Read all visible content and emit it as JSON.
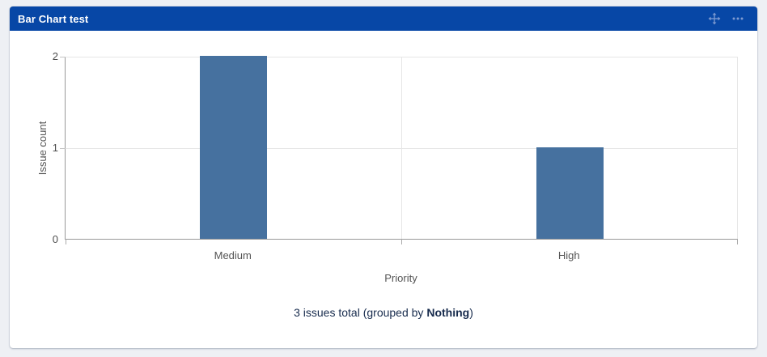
{
  "widget": {
    "title": "Bar Chart test",
    "icons": {
      "move": "four-way-arrow",
      "more": "ellipsis"
    }
  },
  "colors": {
    "page_bg": "#EEF0F4",
    "card_bg": "#FFFFFF",
    "header_bg": "#0747A6",
    "header_text": "#FFFFFF",
    "header_icon": "#7F9BD1",
    "bar": "#46719F",
    "grid": "#E6E6E6",
    "axis": "#999999",
    "tick_text": "#4D4D4D",
    "label_text": "#545454",
    "footer_text": "#172B4D"
  },
  "chart_data": {
    "type": "bar",
    "title": "",
    "categories": [
      "Medium",
      "High"
    ],
    "values": [
      2,
      1
    ],
    "xlabel": "Priority",
    "ylabel": "Issue count",
    "ylim": [
      0,
      2
    ],
    "yticks": [
      0,
      1,
      2
    ],
    "grid": true,
    "legend": false,
    "bar_width_ratio": 0.2
  },
  "footer": {
    "prefix": "3 issues total (grouped by ",
    "group": "Nothing",
    "suffix": ")"
  }
}
